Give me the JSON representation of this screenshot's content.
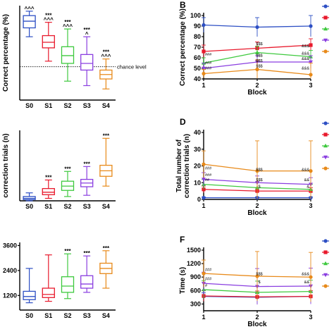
{
  "chart_data": [
    {
      "panel": "A",
      "panel_label": "",
      "type": "box",
      "categories": [
        "S0",
        "S1",
        "S2",
        "S3",
        "S4"
      ],
      "colors": [
        "#2d4fc4",
        "#e8192c",
        "#3ec93e",
        "#8a3ee0",
        "#e88a1a"
      ],
      "boxes": [
        {
          "min": 77,
          "q1": 85,
          "median": 91,
          "q3": 96,
          "max": 100
        },
        {
          "min": 55,
          "q1": 67,
          "median": 72,
          "q3": 78,
          "max": 90
        },
        {
          "min": 37,
          "q1": 53,
          "median": 60,
          "q3": 68,
          "max": 84
        },
        {
          "min": 33,
          "q1": 47,
          "median": 53,
          "q3": 61,
          "max": 77
        },
        {
          "min": 30,
          "q1": 39,
          "median": 43,
          "q3": 47,
          "max": 57
        }
      ],
      "annotations_top": [
        "^^^",
        "***\n^^^",
        "***\n^^^",
        "***\n^",
        "***\n^^^"
      ],
      "reference_line": {
        "value": 50,
        "label": "chance level"
      },
      "ylabel": "Correct percentage (%)",
      "yticks": [],
      "ylim": [
        20,
        105
      ]
    },
    {
      "panel": "B",
      "panel_label": "B",
      "type": "line",
      "x": [
        1,
        2,
        3
      ],
      "xlabel": "Block",
      "ylabel": "Correct percentage (%)",
      "yticks": [
        40,
        50,
        60,
        70,
        80,
        90,
        100
      ],
      "ylim": [
        40,
        100
      ],
      "series": [
        {
          "color": "#2d4fc4",
          "marker": "circle",
          "values": [
            91,
            89,
            90
          ],
          "err": [
            7,
            9,
            10
          ]
        },
        {
          "color": "#e8192c",
          "marker": "square",
          "values": [
            66,
            69,
            72
          ],
          "err": [
            6,
            6,
            6
          ]
        },
        {
          "color": "#3ec93e",
          "marker": "triangle",
          "values": [
            55,
            65,
            61
          ],
          "err": [
            5,
            6,
            6
          ]
        },
        {
          "color": "#8a3ee0",
          "marker": "down",
          "values": [
            50,
            56,
            56
          ],
          "err": [
            5,
            6,
            6
          ]
        },
        {
          "color": "#e88a1a",
          "marker": "circle",
          "values": [
            45,
            49,
            44
          ],
          "err": [
            4,
            9,
            11
          ]
        }
      ],
      "sig_labels": [
        {
          "x": 1,
          "y": 62,
          "text": "###"
        },
        {
          "x": 1,
          "y": 54,
          "text": "###"
        },
        {
          "x": 1,
          "y": 49,
          "text": "###"
        },
        {
          "x": 2,
          "y": 72,
          "text": "$$$"
        },
        {
          "x": 2,
          "y": 61,
          "text": "$$$"
        },
        {
          "x": 2,
          "y": 56,
          "text": "$$$"
        },
        {
          "x": 2,
          "y": 51,
          "text": "$$$"
        },
        {
          "x": 3,
          "y": 70,
          "text": "&&&"
        },
        {
          "x": 3,
          "y": 63,
          "text": "&&&"
        },
        {
          "x": 3,
          "y": 58,
          "text": "&&&"
        },
        {
          "x": 3,
          "y": 49,
          "text": "&&&"
        }
      ]
    },
    {
      "panel": "C",
      "panel_label": "",
      "type": "box",
      "categories": [
        "S0",
        "S1",
        "S2",
        "S3",
        "S4"
      ],
      "colors": [
        "#2d4fc4",
        "#e8192c",
        "#3ec93e",
        "#8a3ee0",
        "#e88a1a"
      ],
      "boxes": [
        {
          "min": 0,
          "q1": 2,
          "median": 4,
          "q3": 7,
          "max": 13
        },
        {
          "min": 4,
          "q1": 10,
          "median": 14,
          "q3": 20,
          "max": 34
        },
        {
          "min": 7,
          "q1": 17,
          "median": 24,
          "q3": 32,
          "max": 48
        },
        {
          "min": 9,
          "q1": 23,
          "median": 29,
          "q3": 35,
          "max": 56
        },
        {
          "min": 24,
          "q1": 40,
          "median": 49,
          "q3": 58,
          "max": 102
        }
      ],
      "annotations_top": [
        "",
        "***",
        "***",
        "***",
        "***"
      ],
      "ylabel": "correction trials (n)",
      "yticks": [],
      "ylim": [
        0,
        115
      ]
    },
    {
      "panel": "D",
      "panel_label": "D",
      "type": "line",
      "x": [
        1,
        2,
        3
      ],
      "xlabel": "Block",
      "ylabel": "Total number of\ncorrection trials (n)",
      "yticks": [
        0,
        10,
        20,
        30,
        40
      ],
      "ylim": [
        0,
        40
      ],
      "series": [
        {
          "color": "#2d4fc4",
          "marker": "circle",
          "values": [
            1,
            1,
            1
          ],
          "err": [
            0.5,
            0.5,
            0.5
          ]
        },
        {
          "color": "#e8192c",
          "marker": "square",
          "values": [
            6,
            5,
            5
          ],
          "err": [
            2,
            2,
            2
          ]
        },
        {
          "color": "#3ec93e",
          "marker": "triangle",
          "values": [
            9,
            7,
            6
          ],
          "err": [
            3,
            3,
            3
          ]
        },
        {
          "color": "#8a3ee0",
          "marker": "down",
          "values": [
            12,
            10,
            9
          ],
          "err": [
            4,
            4,
            4
          ]
        },
        {
          "color": "#e88a1a",
          "marker": "circle",
          "values": [
            21,
            17,
            17
          ],
          "err": [
            8,
            18,
            18
          ]
        }
      ],
      "sig_labels": [
        {
          "x": 1,
          "y": 18,
          "text": "###"
        },
        {
          "x": 1,
          "y": 14,
          "text": "###"
        },
        {
          "x": 1,
          "y": 11,
          "text": "##"
        },
        {
          "x": 2,
          "y": 17,
          "text": "$$$"
        },
        {
          "x": 2,
          "y": 11,
          "text": "$$$"
        },
        {
          "x": 2,
          "y": 7,
          "text": "$"
        },
        {
          "x": 3,
          "y": 17,
          "text": "&&&"
        },
        {
          "x": 3,
          "y": 11,
          "text": "&&"
        },
        {
          "x": 3,
          "y": 7,
          "text": "&"
        }
      ]
    },
    {
      "panel": "E",
      "panel_label": "",
      "type": "box",
      "categories": [
        "S0",
        "S1",
        "S2",
        "S3",
        "S4"
      ],
      "colors": [
        "#2d4fc4",
        "#e8192c",
        "#3ec93e",
        "#8a3ee0",
        "#e88a1a"
      ],
      "boxes": [
        {
          "min": 850,
          "q1": 1000,
          "median": 1150,
          "q3": 1400,
          "max": 2500
        },
        {
          "min": 920,
          "q1": 1100,
          "median": 1250,
          "q3": 1550,
          "max": 3150
        },
        {
          "min": 1050,
          "q1": 1350,
          "median": 1650,
          "q3": 2100,
          "max": 3200
        },
        {
          "min": 1350,
          "q1": 1550,
          "median": 1750,
          "q3": 2150,
          "max": 3100
        },
        {
          "min": 1550,
          "q1": 2250,
          "median": 2500,
          "q3": 2750,
          "max": 3350
        }
      ],
      "annotations_top": [
        "",
        "",
        "***",
        "***",
        "***"
      ],
      "ylabel": "",
      "yticks": [
        1200,
        2400,
        3600
      ],
      "ylim": [
        500,
        3750
      ]
    },
    {
      "panel": "F",
      "panel_label": "F",
      "type": "line",
      "x": [
        1,
        2,
        3
      ],
      "xlabel": "Block",
      "ylabel": "Time (s)",
      "yticks": [
        300,
        600,
        900,
        1200,
        1500
      ],
      "ylim": [
        150,
        1500
      ],
      "series": [
        {
          "color": "#2d4fc4",
          "marker": "circle",
          "values": [
            470,
            450,
            470
          ],
          "err": [
            80,
            90,
            100
          ]
        },
        {
          "color": "#e8192c",
          "marker": "square",
          "values": [
            480,
            460,
            470
          ],
          "err": [
            120,
            130,
            130
          ]
        },
        {
          "color": "#3ec93e",
          "marker": "triangle",
          "values": [
            620,
            560,
            580
          ],
          "err": [
            200,
            250,
            250
          ]
        },
        {
          "color": "#8a3ee0",
          "marker": "down",
          "values": [
            760,
            690,
            700
          ],
          "err": [
            250,
            400,
            400
          ]
        },
        {
          "color": "#e88a1a",
          "marker": "circle",
          "values": [
            980,
            920,
            900
          ],
          "err": [
            300,
            550,
            550
          ]
        }
      ],
      "sig_labels": [
        {
          "x": 1,
          "y": 1040,
          "text": "###"
        },
        {
          "x": 1,
          "y": 830,
          "text": "###"
        },
        {
          "x": 1,
          "y": 680,
          "text": "#"
        },
        {
          "x": 2,
          "y": 940,
          "text": "$$$"
        },
        {
          "x": 2,
          "y": 760,
          "text": "$"
        },
        {
          "x": 3,
          "y": 940,
          "text": "&&&"
        },
        {
          "x": 3,
          "y": 760,
          "text": "&&"
        }
      ]
    }
  ]
}
